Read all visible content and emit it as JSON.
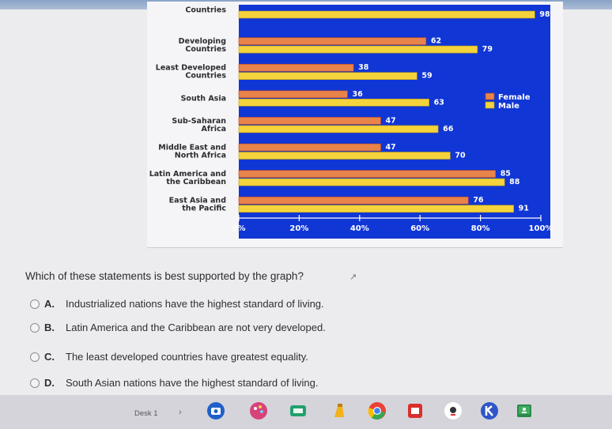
{
  "chart_data": {
    "type": "bar",
    "orientation": "horizontal",
    "categories": [
      [
        "Countries"
      ],
      [
        "Developing",
        "Countries"
      ],
      [
        "Least Developed",
        "Countries"
      ],
      [
        "South Asia"
      ],
      [
        "Sub-Saharan",
        "Africa"
      ],
      [
        "Middle East and",
        "North Africa"
      ],
      [
        "Latin America and",
        "the Caribbean"
      ],
      [
        "East Asia and",
        "the Pacific"
      ]
    ],
    "series": [
      {
        "name": "Female",
        "color": "#e8834a",
        "values": [
          null,
          62,
          38,
          36,
          47,
          47,
          85,
          76
        ]
      },
      {
        "name": "Male",
        "color": "#f4d33c",
        "values": [
          98,
          79,
          59,
          63,
          66,
          70,
          88,
          91
        ]
      }
    ],
    "xlim": [
      0,
      100
    ],
    "ticks": [
      "0%",
      "20%",
      "40%",
      "60%",
      "80%",
      "100%"
    ],
    "tick_values": [
      0,
      20,
      40,
      60,
      80,
      100
    ],
    "legend_position": "right",
    "background": "#1136d6"
  },
  "question": {
    "text": "Which of these statements is best supported by the graph?",
    "options": [
      {
        "letter": "A.",
        "text": "Industrialized nations have the highest standard of living."
      },
      {
        "letter": "B.",
        "text": "Latin America and the Caribbean are not very developed."
      },
      {
        "letter": "C.",
        "text": "The least developed countries have greatest equality."
      },
      {
        "letter": "D.",
        "text": "South Asian nations have the highest standard of living."
      }
    ]
  },
  "shelf": {
    "desk_label": "Desk 1",
    "apps": [
      {
        "icon": "camera-icon",
        "color": "#1f5fc9"
      },
      {
        "icon": "paint-palette-icon",
        "color": "#d8417a"
      },
      {
        "icon": "screencast-icon",
        "color": "#22a06b"
      },
      {
        "icon": "marker-icon",
        "color": "#f2b21c"
      },
      {
        "icon": "chrome-icon",
        "color": "#3b82f6"
      },
      {
        "icon": "slides-icon",
        "color": "#d9302c"
      },
      {
        "icon": "record-icon",
        "color": "#ffffff"
      },
      {
        "icon": "k-app-icon",
        "color": "#2f56c8"
      },
      {
        "icon": "classroom-icon",
        "color": "#2a8a4a"
      }
    ]
  }
}
